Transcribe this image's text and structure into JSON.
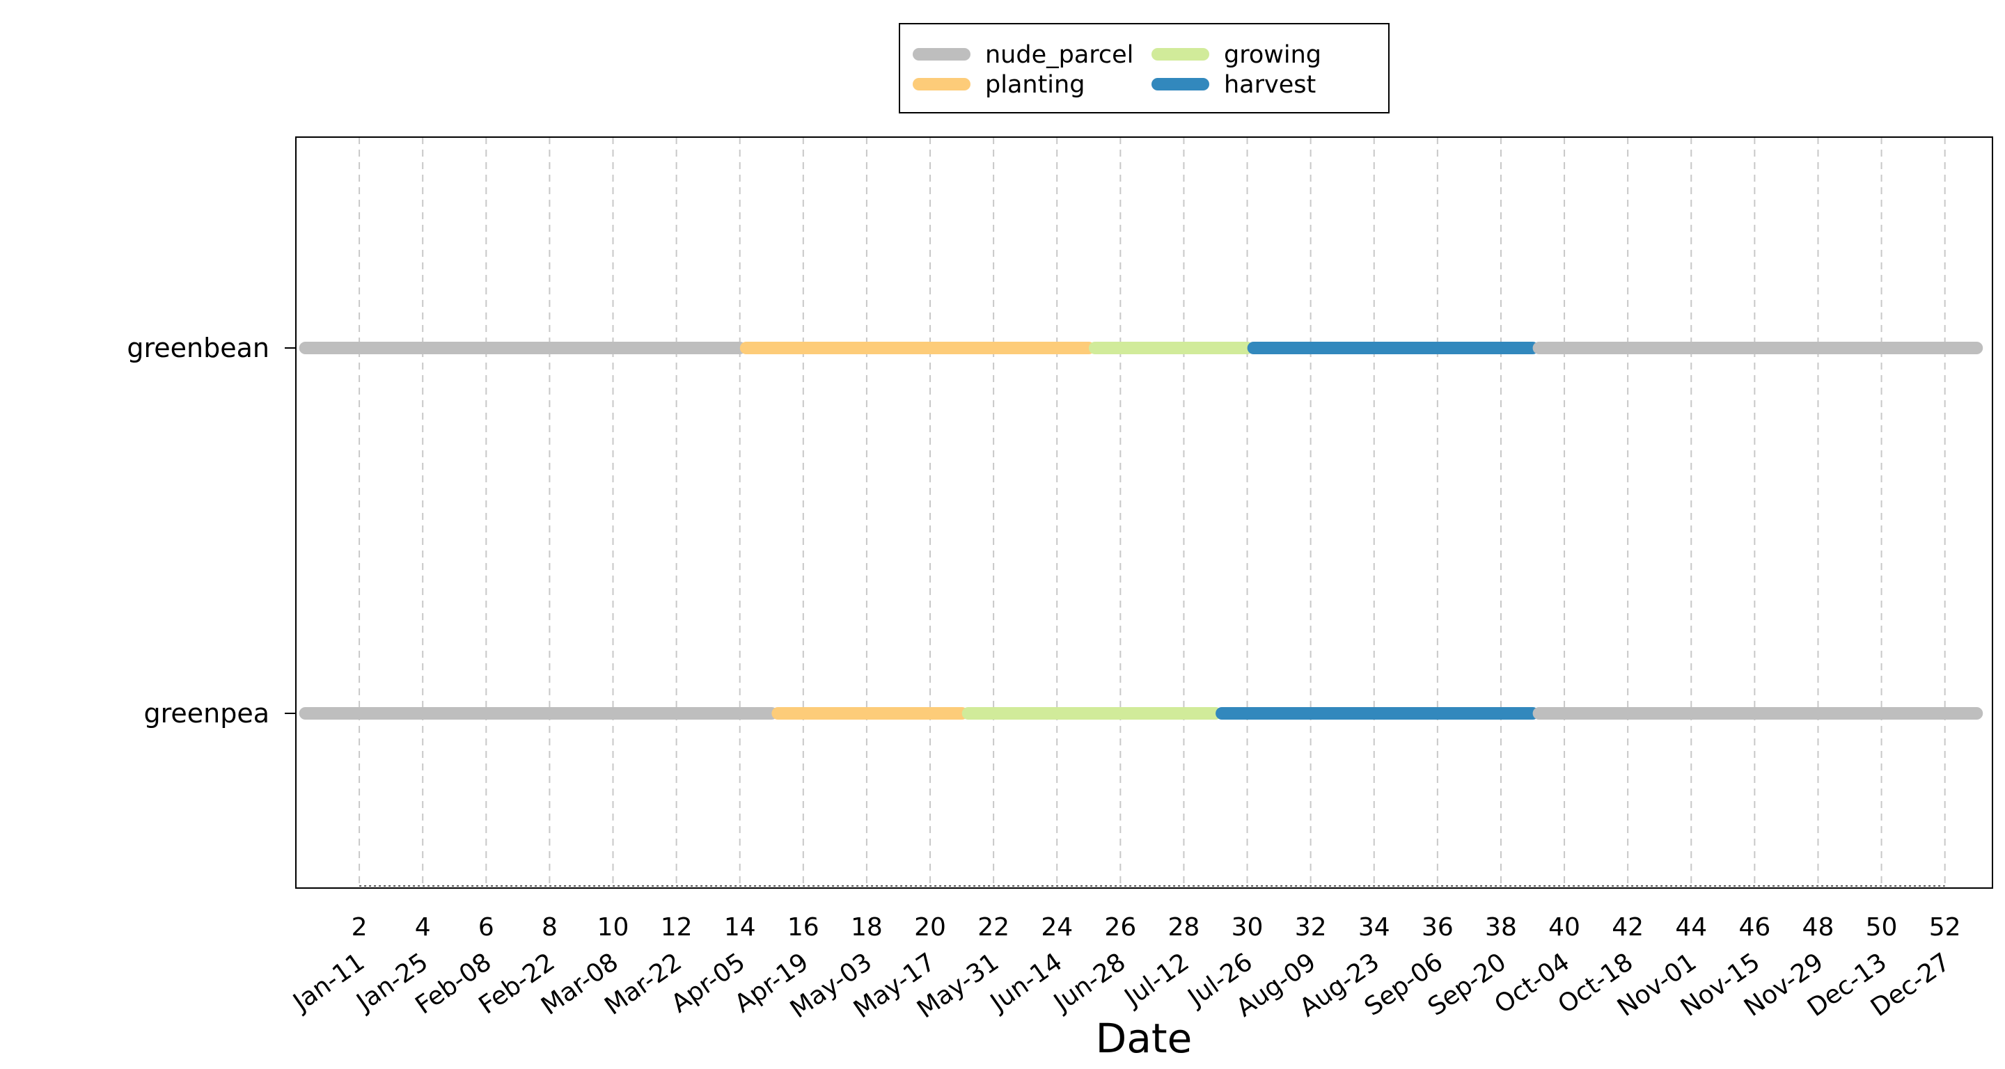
{
  "chart_data": {
    "type": "timeline",
    "title": "",
    "xlabel": "Date",
    "ylabel": "",
    "xlim": [
      0,
      53.5
    ],
    "x_ticks": [
      2,
      4,
      6,
      8,
      10,
      12,
      14,
      16,
      18,
      20,
      22,
      24,
      26,
      28,
      30,
      32,
      34,
      36,
      38,
      40,
      42,
      44,
      46,
      48,
      50,
      52
    ],
    "date_labels": [
      "Jan-11",
      "Jan-25",
      "Feb-08",
      "Feb-22",
      "Mar-08",
      "Mar-22",
      "Apr-05",
      "Apr-19",
      "May-03",
      "May-17",
      "May-31",
      "Jun-14",
      "Jun-28",
      "Jul-12",
      "Jul-26",
      "Aug-09",
      "Aug-23",
      "Sep-06",
      "Sep-20",
      "Oct-04",
      "Oct-18",
      "Nov-01",
      "Nov-15",
      "Nov-29",
      "Dec-13",
      "Dec-27"
    ],
    "grid": "vertical-dashed",
    "legend_position": "top-center",
    "legend": [
      {
        "name": "nude_parcel",
        "color": "#bebebe"
      },
      {
        "name": "planting",
        "color": "#fdcc79"
      },
      {
        "name": "growing",
        "color": "#d1eb9a"
      },
      {
        "name": "harvest",
        "color": "#3288bd"
      }
    ],
    "crops": [
      {
        "name": "greenbean",
        "segments": [
          {
            "stage": "nude_parcel",
            "start": 0.3,
            "end": 14.0
          },
          {
            "stage": "planting",
            "start": 14.2,
            "end": 25.0
          },
          {
            "stage": "growing",
            "start": 25.2,
            "end": 30.0
          },
          {
            "stage": "harvest",
            "start": 30.2,
            "end": 39.0
          },
          {
            "stage": "nude_parcel",
            "start": 39.2,
            "end": 53.0
          }
        ]
      },
      {
        "name": "greenpea",
        "segments": [
          {
            "stage": "nude_parcel",
            "start": 0.3,
            "end": 15.0
          },
          {
            "stage": "planting",
            "start": 15.2,
            "end": 21.0
          },
          {
            "stage": "growing",
            "start": 21.2,
            "end": 29.0
          },
          {
            "stage": "harvest",
            "start": 29.2,
            "end": 39.0
          },
          {
            "stage": "nude_parcel",
            "start": 39.2,
            "end": 53.0
          }
        ]
      }
    ]
  }
}
